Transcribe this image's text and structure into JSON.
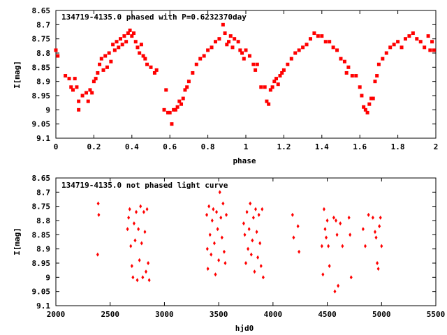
{
  "chart_data": [
    {
      "type": "scatter",
      "title": "134719-4135.0 phased with P=0.6232370day",
      "xlabel": "phase",
      "ylabel": "I[mag]",
      "xlim": [
        0,
        2
      ],
      "ylim": [
        8.65,
        9.1
      ],
      "y_inverted": true,
      "x_ticks": [
        "0",
        "0.2",
        "0.4",
        "0.6",
        "0.8",
        "1",
        "1.2",
        "1.4",
        "1.6",
        "1.8",
        "2"
      ],
      "y_ticks": [
        "8.65",
        "8.7",
        "8.75",
        "8.8",
        "8.85",
        "8.9",
        "8.95",
        "9",
        "9.05",
        "9.1"
      ],
      "marker": "square",
      "color": "#ff0000",
      "points": [
        [
          0.0,
          8.79
        ],
        [
          0.01,
          8.81
        ],
        [
          0.05,
          8.88
        ],
        [
          0.07,
          8.89
        ],
        [
          0.08,
          8.92
        ],
        [
          0.09,
          8.93
        ],
        [
          0.1,
          8.89
        ],
        [
          0.11,
          8.92
        ],
        [
          0.12,
          8.97
        ],
        [
          0.12,
          9.0
        ],
        [
          0.14,
          8.95
        ],
        [
          0.16,
          8.94
        ],
        [
          0.17,
          8.97
        ],
        [
          0.18,
          8.93
        ],
        [
          0.19,
          8.94
        ],
        [
          0.2,
          8.9
        ],
        [
          0.21,
          8.89
        ],
        [
          0.22,
          8.87
        ],
        [
          0.23,
          8.84
        ],
        [
          0.24,
          8.82
        ],
        [
          0.25,
          8.86
        ],
        [
          0.26,
          8.81
        ],
        [
          0.27,
          8.85
        ],
        [
          0.28,
          8.8
        ],
        [
          0.29,
          8.83
        ],
        [
          0.3,
          8.77
        ],
        [
          0.31,
          8.79
        ],
        [
          0.32,
          8.76
        ],
        [
          0.33,
          8.78
        ],
        [
          0.34,
          8.75
        ],
        [
          0.35,
          8.77
        ],
        [
          0.36,
          8.74
        ],
        [
          0.37,
          8.76
        ],
        [
          0.38,
          8.73
        ],
        [
          0.39,
          8.72
        ],
        [
          0.4,
          8.74
        ],
        [
          0.41,
          8.73
        ],
        [
          0.42,
          8.76
        ],
        [
          0.43,
          8.78
        ],
        [
          0.44,
          8.8
        ],
        [
          0.45,
          8.77
        ],
        [
          0.46,
          8.81
        ],
        [
          0.47,
          8.82
        ],
        [
          0.48,
          8.84
        ],
        [
          0.5,
          8.85
        ],
        [
          0.52,
          8.87
        ],
        [
          0.53,
          8.86
        ],
        [
          0.57,
          9.0
        ],
        [
          0.58,
          8.93
        ],
        [
          0.59,
          9.01
        ],
        [
          0.6,
          9.01
        ],
        [
          0.61,
          9.05
        ],
        [
          0.62,
          9.0
        ],
        [
          0.63,
          9.0
        ],
        [
          0.64,
          8.99
        ],
        [
          0.65,
          8.97
        ],
        [
          0.66,
          8.98
        ],
        [
          0.67,
          8.96
        ],
        [
          0.68,
          8.93
        ],
        [
          0.69,
          8.92
        ],
        [
          0.7,
          8.9
        ],
        [
          0.72,
          8.87
        ],
        [
          0.74,
          8.84
        ],
        [
          0.76,
          8.82
        ],
        [
          0.78,
          8.81
        ],
        [
          0.8,
          8.79
        ],
        [
          0.82,
          8.78
        ],
        [
          0.84,
          8.76
        ],
        [
          0.86,
          8.75
        ],
        [
          0.88,
          8.7
        ],
        [
          0.89,
          8.73
        ],
        [
          0.9,
          8.77
        ],
        [
          0.91,
          8.76
        ],
        [
          0.92,
          8.74
        ],
        [
          0.93,
          8.78
        ],
        [
          0.94,
          8.75
        ],
        [
          0.96,
          8.76
        ],
        [
          0.97,
          8.79
        ],
        [
          0.98,
          8.8
        ],
        [
          0.99,
          8.82
        ],
        [
          1.0,
          8.79
        ],
        [
          1.02,
          8.81
        ],
        [
          1.04,
          8.84
        ],
        [
          1.05,
          8.86
        ],
        [
          1.06,
          8.84
        ],
        [
          1.08,
          8.92
        ],
        [
          1.1,
          8.92
        ],
        [
          1.11,
          8.97
        ],
        [
          1.12,
          8.98
        ],
        [
          1.13,
          8.93
        ],
        [
          1.14,
          8.92
        ],
        [
          1.15,
          8.9
        ],
        [
          1.16,
          8.89
        ],
        [
          1.17,
          8.91
        ],
        [
          1.18,
          8.88
        ],
        [
          1.19,
          8.87
        ],
        [
          1.2,
          8.86
        ],
        [
          1.22,
          8.84
        ],
        [
          1.24,
          8.82
        ],
        [
          1.26,
          8.8
        ],
        [
          1.28,
          8.79
        ],
        [
          1.3,
          8.78
        ],
        [
          1.32,
          8.77
        ],
        [
          1.34,
          8.75
        ],
        [
          1.36,
          8.73
        ],
        [
          1.38,
          8.74
        ],
        [
          1.4,
          8.74
        ],
        [
          1.42,
          8.76
        ],
        [
          1.44,
          8.76
        ],
        [
          1.46,
          8.78
        ],
        [
          1.48,
          8.79
        ],
        [
          1.5,
          8.82
        ],
        [
          1.52,
          8.83
        ],
        [
          1.53,
          8.87
        ],
        [
          1.54,
          8.85
        ],
        [
          1.56,
          8.88
        ],
        [
          1.58,
          8.88
        ],
        [
          1.6,
          8.92
        ],
        [
          1.61,
          8.95
        ],
        [
          1.62,
          8.99
        ],
        [
          1.63,
          9.0
        ],
        [
          1.64,
          9.01
        ],
        [
          1.65,
          8.98
        ],
        [
          1.66,
          8.96
        ],
        [
          1.67,
          8.96
        ],
        [
          1.68,
          8.9
        ],
        [
          1.69,
          8.88
        ],
        [
          1.7,
          8.84
        ],
        [
          1.72,
          8.82
        ],
        [
          1.74,
          8.8
        ],
        [
          1.76,
          8.78
        ],
        [
          1.78,
          8.77
        ],
        [
          1.8,
          8.76
        ],
        [
          1.82,
          8.78
        ],
        [
          1.84,
          8.75
        ],
        [
          1.86,
          8.74
        ],
        [
          1.88,
          8.73
        ],
        [
          1.9,
          8.75
        ],
        [
          1.92,
          8.76
        ],
        [
          1.94,
          8.78
        ],
        [
          1.96,
          8.74
        ],
        [
          1.97,
          8.79
        ],
        [
          1.98,
          8.76
        ],
        [
          1.99,
          8.79
        ]
      ]
    },
    {
      "type": "scatter",
      "title": "134719-4135.0 not phased light curve",
      "xlabel": "hjd0",
      "ylabel": "I[mag]",
      "xlim": [
        2000,
        5500
      ],
      "ylim": [
        8.65,
        9.1
      ],
      "y_inverted": true,
      "x_ticks": [
        "2000",
        "2500",
        "3000",
        "3500",
        "4000",
        "4500",
        "5000",
        "5500"
      ],
      "y_ticks": [
        "8.65",
        "8.7",
        "8.75",
        "8.8",
        "8.85",
        "8.9",
        "8.95",
        "9",
        "9.05",
        "9.1"
      ],
      "marker": "diamond",
      "color": "#ff0000",
      "points": [
        [
          2390,
          8.74
        ],
        [
          2395,
          8.78
        ],
        [
          2385,
          8.92
        ],
        [
          2660,
          8.83
        ],
        [
          2670,
          8.79
        ],
        [
          2680,
          8.76
        ],
        [
          2690,
          8.89
        ],
        [
          2700,
          8.96
        ],
        [
          2710,
          9.0
        ],
        [
          2720,
          8.81
        ],
        [
          2730,
          8.87
        ],
        [
          2740,
          8.77
        ],
        [
          2750,
          9.01
        ],
        [
          2760,
          8.83
        ],
        [
          2770,
          8.94
        ],
        [
          2780,
          8.75
        ],
        [
          2790,
          8.88
        ],
        [
          2800,
          9.0
        ],
        [
          2810,
          8.77
        ],
        [
          2820,
          8.84
        ],
        [
          2830,
          8.98
        ],
        [
          2840,
          8.76
        ],
        [
          2850,
          8.95
        ],
        [
          2860,
          9.01
        ],
        [
          3390,
          8.78
        ],
        [
          3395,
          8.9
        ],
        [
          3400,
          8.97
        ],
        [
          3410,
          8.75
        ],
        [
          3420,
          8.85
        ],
        [
          3430,
          8.92
        ],
        [
          3440,
          8.8
        ],
        [
          3450,
          8.76
        ],
        [
          3460,
          8.88
        ],
        [
          3470,
          8.99
        ],
        [
          3480,
          8.77
        ],
        [
          3490,
          8.83
        ],
        [
          3500,
          8.94
        ],
        [
          3510,
          8.7
        ],
        [
          3520,
          8.79
        ],
        [
          3530,
          8.86
        ],
        [
          3540,
          8.74
        ],
        [
          3550,
          8.91
        ],
        [
          3560,
          8.95
        ],
        [
          3570,
          8.78
        ],
        [
          3730,
          8.81
        ],
        [
          3740,
          8.85
        ],
        [
          3750,
          8.95
        ],
        [
          3760,
          8.77
        ],
        [
          3770,
          8.9
        ],
        [
          3780,
          8.83
        ],
        [
          3790,
          8.74
        ],
        [
          3800,
          8.92
        ],
        [
          3810,
          8.87
        ],
        [
          3820,
          8.79
        ],
        [
          3830,
          8.98
        ],
        [
          3840,
          8.76
        ],
        [
          3850,
          8.84
        ],
        [
          3860,
          8.93
        ],
        [
          3870,
          8.78
        ],
        [
          3880,
          8.88
        ],
        [
          3890,
          8.96
        ],
        [
          3900,
          8.76
        ],
        [
          3910,
          9.0
        ],
        [
          4180,
          8.78
        ],
        [
          4190,
          8.86
        ],
        [
          4230,
          8.82
        ],
        [
          4240,
          8.91
        ],
        [
          4450,
          8.89
        ],
        [
          4460,
          8.99
        ],
        [
          4470,
          8.76
        ],
        [
          4480,
          8.83
        ],
        [
          4490,
          8.86
        ],
        [
          4500,
          8.8
        ],
        [
          4510,
          8.89
        ],
        [
          4520,
          8.96
        ],
        [
          4560,
          8.79
        ],
        [
          4570,
          9.05
        ],
        [
          4580,
          8.8
        ],
        [
          4590,
          8.85
        ],
        [
          4600,
          9.03
        ],
        [
          4620,
          8.81
        ],
        [
          4640,
          8.89
        ],
        [
          4700,
          8.79
        ],
        [
          4710,
          8.85
        ],
        [
          4720,
          9.0
        ],
        [
          4830,
          8.83
        ],
        [
          4850,
          8.89
        ],
        [
          4880,
          8.78
        ],
        [
          4920,
          8.79
        ],
        [
          4940,
          8.84
        ],
        [
          4950,
          8.86
        ],
        [
          4960,
          8.95
        ],
        [
          4970,
          8.97
        ],
        [
          4980,
          8.82
        ],
        [
          4990,
          8.79
        ],
        [
          5000,
          8.89
        ]
      ]
    }
  ]
}
